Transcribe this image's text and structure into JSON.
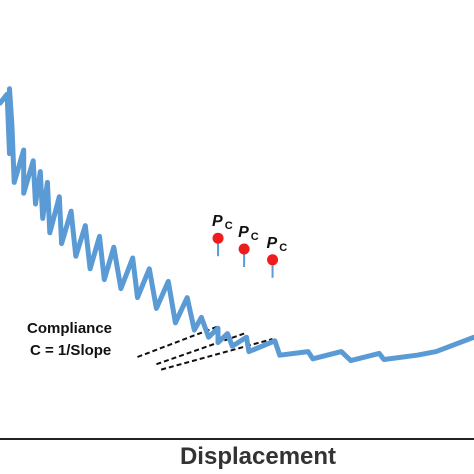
{
  "colors": {
    "curve": "#5b9bd5",
    "marker": "#ee1c1c",
    "axis": "#222222",
    "tangent": "#111111"
  },
  "chart_data": {
    "type": "line",
    "title": "",
    "xlabel": "Displacement",
    "ylabel": "",
    "grid": false,
    "legend": "none",
    "annotation": {
      "line1": "Compliance",
      "line2": "C = 1/Slope"
    },
    "pc_points": [
      {
        "label": "P",
        "subscript": "C",
        "x": 0.46,
        "y": 0.505
      },
      {
        "label": "P",
        "subscript": "C",
        "x": 0.515,
        "y": 0.475
      },
      {
        "label": "P",
        "subscript": "C",
        "x": 0.575,
        "y": 0.445
      }
    ],
    "series": [
      {
        "values_xy": [
          [
            0.0,
            0.88
          ],
          [
            0.015,
            0.905
          ],
          [
            0.02,
            0.74
          ],
          [
            0.02,
            0.92
          ],
          [
            0.025,
            0.82
          ],
          [
            0.03,
            0.66
          ],
          [
            0.05,
            0.75
          ],
          [
            0.05,
            0.63
          ],
          [
            0.07,
            0.72
          ],
          [
            0.075,
            0.6
          ],
          [
            0.085,
            0.69
          ],
          [
            0.09,
            0.56
          ],
          [
            0.1,
            0.66
          ],
          [
            0.105,
            0.52
          ],
          [
            0.125,
            0.62
          ],
          [
            0.13,
            0.49
          ],
          [
            0.15,
            0.58
          ],
          [
            0.16,
            0.455
          ],
          [
            0.18,
            0.54
          ],
          [
            0.19,
            0.42
          ],
          [
            0.21,
            0.51
          ],
          [
            0.22,
            0.39
          ],
          [
            0.24,
            0.48
          ],
          [
            0.255,
            0.365
          ],
          [
            0.28,
            0.45
          ],
          [
            0.29,
            0.34
          ],
          [
            0.315,
            0.42
          ],
          [
            0.33,
            0.31
          ],
          [
            0.355,
            0.385
          ],
          [
            0.37,
            0.27
          ],
          [
            0.395,
            0.34
          ],
          [
            0.41,
            0.25
          ],
          [
            0.425,
            0.285
          ],
          [
            0.44,
            0.23
          ],
          [
            0.46,
            0.255
          ],
          [
            0.46,
            0.215
          ],
          [
            0.48,
            0.24
          ],
          [
            0.49,
            0.205
          ],
          [
            0.52,
            0.23
          ],
          [
            0.525,
            0.19
          ],
          [
            0.58,
            0.22
          ],
          [
            0.59,
            0.18
          ],
          [
            0.65,
            0.19
          ],
          [
            0.66,
            0.17
          ],
          [
            0.72,
            0.19
          ],
          [
            0.74,
            0.165
          ],
          [
            0.8,
            0.185
          ],
          [
            0.81,
            0.168
          ],
          [
            0.88,
            0.18
          ],
          [
            0.92,
            0.19
          ],
          [
            1.0,
            0.23
          ]
        ]
      }
    ],
    "tangent_lines": [
      {
        "x": [
          0.29,
          0.46
        ],
        "y": [
          0.175,
          0.26
        ]
      },
      {
        "x": [
          0.33,
          0.515
        ],
        "y": [
          0.155,
          0.24
        ]
      },
      {
        "x": [
          0.34,
          0.575
        ],
        "y": [
          0.14,
          0.225
        ]
      }
    ]
  }
}
